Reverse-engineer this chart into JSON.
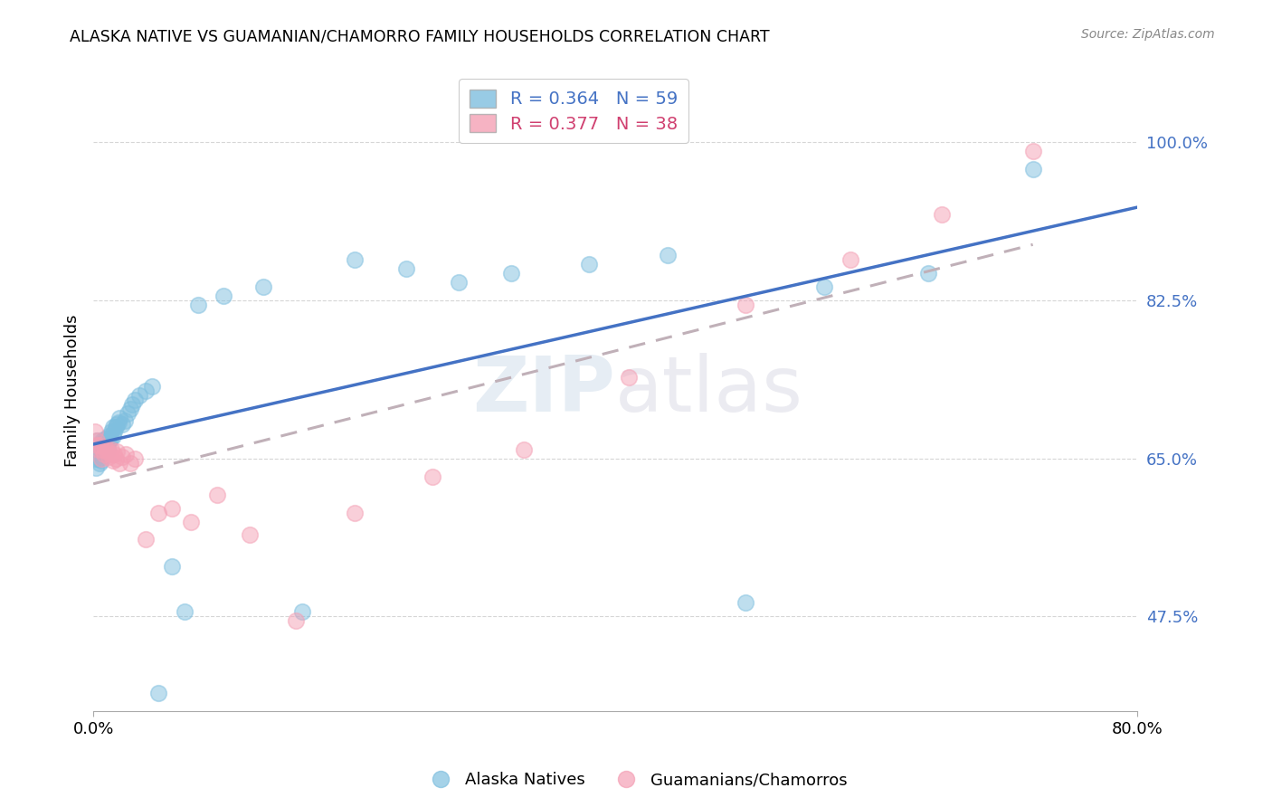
{
  "title": "ALASKA NATIVE VS GUAMANIAN/CHAMORRO FAMILY HOUSEHOLDS CORRELATION CHART",
  "source": "Source: ZipAtlas.com",
  "ylabel_label": "Family Households",
  "legend_label1": "Alaska Natives",
  "legend_label2": "Guamanians/Chamorros",
  "r1": 0.364,
  "n1": 59,
  "r2": 0.377,
  "n2": 38,
  "color_blue": "#7fbfdf",
  "color_pink": "#f4a0b5",
  "line_blue": "#4472c4",
  "line_pink": "#c0a0b0",
  "background": "#ffffff",
  "alaska_x": [
    0.001,
    0.002,
    0.002,
    0.003,
    0.003,
    0.004,
    0.004,
    0.005,
    0.005,
    0.005,
    0.006,
    0.006,
    0.007,
    0.007,
    0.008,
    0.008,
    0.009,
    0.009,
    0.01,
    0.01,
    0.011,
    0.011,
    0.012,
    0.012,
    0.013,
    0.014,
    0.015,
    0.015,
    0.016,
    0.017,
    0.018,
    0.019,
    0.02,
    0.022,
    0.024,
    0.026,
    0.028,
    0.03,
    0.032,
    0.035,
    0.04,
    0.045,
    0.05,
    0.06,
    0.07,
    0.08,
    0.1,
    0.13,
    0.16,
    0.2,
    0.24,
    0.28,
    0.32,
    0.38,
    0.44,
    0.5,
    0.56,
    0.64,
    0.72
  ],
  "alaska_y": [
    0.65,
    0.64,
    0.66,
    0.655,
    0.67,
    0.65,
    0.665,
    0.645,
    0.66,
    0.655,
    0.648,
    0.658,
    0.662,
    0.67,
    0.66,
    0.668,
    0.665,
    0.672,
    0.658,
    0.672,
    0.668,
    0.66,
    0.675,
    0.668,
    0.672,
    0.68,
    0.675,
    0.685,
    0.68,
    0.685,
    0.688,
    0.69,
    0.695,
    0.688,
    0.692,
    0.7,
    0.705,
    0.71,
    0.715,
    0.72,
    0.725,
    0.73,
    0.39,
    0.53,
    0.48,
    0.82,
    0.83,
    0.84,
    0.48,
    0.87,
    0.86,
    0.845,
    0.855,
    0.865,
    0.875,
    0.49,
    0.84,
    0.855,
    0.97
  ],
  "guam_x": [
    0.001,
    0.002,
    0.003,
    0.004,
    0.005,
    0.006,
    0.007,
    0.008,
    0.009,
    0.01,
    0.011,
    0.012,
    0.013,
    0.014,
    0.015,
    0.016,
    0.017,
    0.018,
    0.02,
    0.022,
    0.025,
    0.028,
    0.032,
    0.04,
    0.05,
    0.06,
    0.075,
    0.095,
    0.12,
    0.155,
    0.2,
    0.26,
    0.33,
    0.41,
    0.5,
    0.58,
    0.65,
    0.72
  ],
  "guam_y": [
    0.68,
    0.665,
    0.67,
    0.66,
    0.665,
    0.65,
    0.66,
    0.655,
    0.662,
    0.658,
    0.66,
    0.652,
    0.655,
    0.66,
    0.648,
    0.655,
    0.65,
    0.658,
    0.645,
    0.652,
    0.655,
    0.645,
    0.65,
    0.56,
    0.59,
    0.595,
    0.58,
    0.61,
    0.565,
    0.47,
    0.59,
    0.63,
    0.66,
    0.74,
    0.82,
    0.87,
    0.92,
    0.99
  ],
  "xlim": [
    0.0,
    0.8
  ],
  "ylim": [
    0.37,
    1.08
  ],
  "yticks": [
    0.475,
    0.65,
    0.825,
    1.0
  ],
  "xticks": [
    0.0,
    0.8
  ]
}
